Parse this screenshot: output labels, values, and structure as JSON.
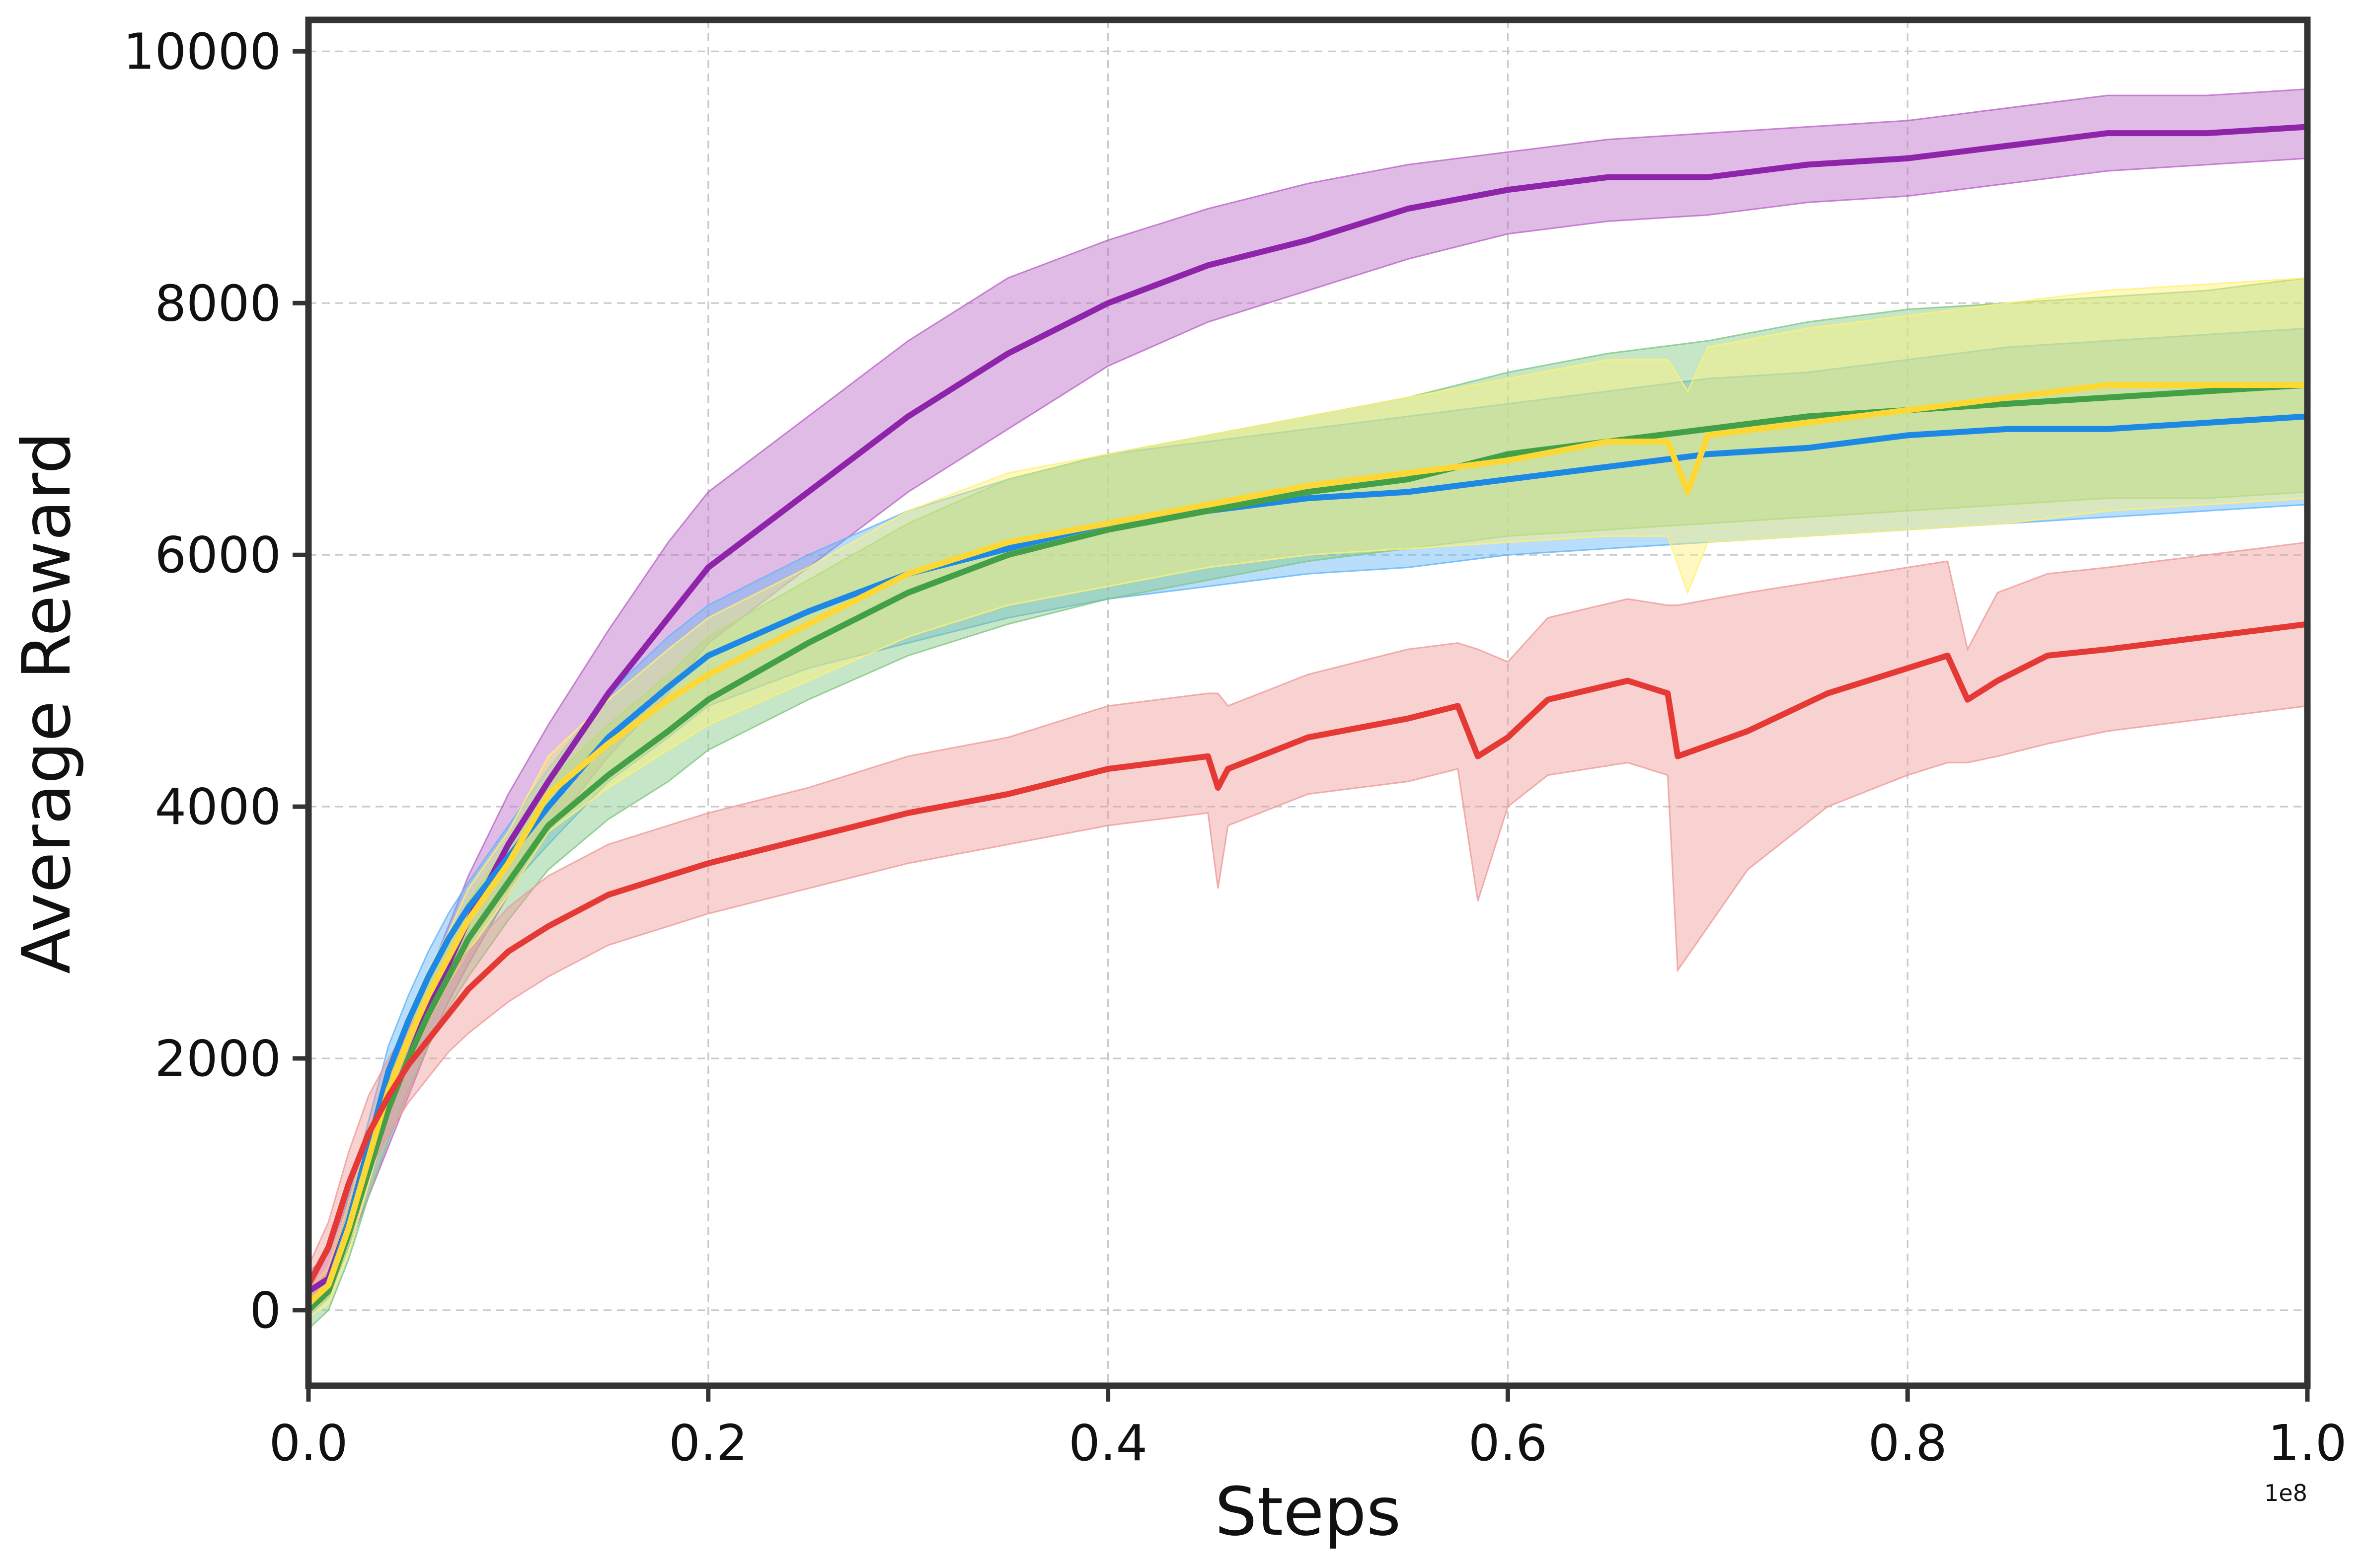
{
  "chart_data": {
    "type": "line",
    "title": "",
    "xlabel": "Steps",
    "ylabel": "Average Reward",
    "x_offset_label": "1e8",
    "xlim": [
      0.0,
      1.0
    ],
    "ylim": [
      -600,
      10250
    ],
    "x_ticks": [
      0.0,
      0.2,
      0.4,
      0.6,
      0.8,
      1.0
    ],
    "x_tick_labels": [
      "0.0",
      "0.2",
      "0.4",
      "0.6",
      "0.8",
      "1.0"
    ],
    "y_ticks": [
      0,
      2000,
      4000,
      6000,
      8000,
      10000
    ],
    "y_tick_labels": [
      "0",
      "2000",
      "4000",
      "6000",
      "8000",
      "10000"
    ],
    "grid": true,
    "legend": "none",
    "series": [
      {
        "name": "purple",
        "color": "#8E24AA",
        "band_color": "#BA68C8",
        "x": [
          0.0,
          0.01,
          0.02,
          0.03,
          0.04,
          0.05,
          0.06,
          0.07,
          0.08,
          0.1,
          0.12,
          0.15,
          0.18,
          0.2,
          0.25,
          0.3,
          0.35,
          0.4,
          0.45,
          0.5,
          0.55,
          0.6,
          0.65,
          0.7,
          0.75,
          0.8,
          0.85,
          0.9,
          0.95,
          1.0
        ],
        "values": [
          150,
          250,
          700,
          1100,
          1600,
          2000,
          2400,
          2750,
          3100,
          3700,
          4200,
          4900,
          5500,
          5900,
          6500,
          7100,
          7600,
          8000,
          8300,
          8500,
          8750,
          8900,
          9000,
          9000,
          9100,
          9150,
          9250,
          9350,
          9350,
          9400
        ],
        "lower": [
          0,
          100,
          500,
          900,
          1300,
          1700,
          2100,
          2450,
          2750,
          3300,
          3800,
          4400,
          4900,
          5300,
          5900,
          6500,
          7000,
          7500,
          7850,
          8100,
          8350,
          8550,
          8650,
          8700,
          8800,
          8850,
          8950,
          9050,
          9100,
          9150
        ],
        "upper": [
          300,
          450,
          900,
          1300,
          1800,
          2250,
          2650,
          3050,
          3450,
          4100,
          4650,
          5400,
          6100,
          6500,
          7100,
          7700,
          8200,
          8500,
          8750,
          8950,
          9100,
          9200,
          9300,
          9350,
          9400,
          9450,
          9550,
          9650,
          9650,
          9700
        ]
      },
      {
        "name": "blue",
        "color": "#1E88E5",
        "band_color": "#64B5F6",
        "x": [
          0.0,
          0.01,
          0.02,
          0.03,
          0.04,
          0.05,
          0.06,
          0.07,
          0.08,
          0.1,
          0.12,
          0.15,
          0.18,
          0.2,
          0.25,
          0.3,
          0.35,
          0.4,
          0.45,
          0.5,
          0.55,
          0.6,
          0.65,
          0.7,
          0.75,
          0.8,
          0.85,
          0.9,
          0.95,
          1.0
        ],
        "values": [
          50,
          200,
          700,
          1300,
          1900,
          2300,
          2650,
          2950,
          3200,
          3600,
          4000,
          4550,
          4950,
          5200,
          5550,
          5850,
          6050,
          6250,
          6350,
          6450,
          6500,
          6600,
          6700,
          6800,
          6850,
          6950,
          7000,
          7000,
          7050,
          7100
        ],
        "lower": [
          -50,
          100,
          500,
          1100,
          1700,
          2100,
          2450,
          2750,
          3000,
          3350,
          3700,
          4200,
          4550,
          4800,
          5100,
          5300,
          5500,
          5650,
          5750,
          5850,
          5900,
          6000,
          6050,
          6100,
          6150,
          6200,
          6250,
          6300,
          6350,
          6400
        ],
        "upper": [
          150,
          300,
          900,
          1500,
          2100,
          2500,
          2850,
          3150,
          3400,
          3850,
          4300,
          4900,
          5350,
          5600,
          6000,
          6350,
          6600,
          6800,
          6900,
          7000,
          7100,
          7200,
          7300,
          7400,
          7450,
          7550,
          7650,
          7700,
          7750,
          7800
        ]
      },
      {
        "name": "green",
        "color": "#43A047",
        "band_color": "#81C784",
        "x": [
          0.0,
          0.01,
          0.02,
          0.03,
          0.04,
          0.05,
          0.06,
          0.07,
          0.08,
          0.1,
          0.12,
          0.15,
          0.18,
          0.2,
          0.25,
          0.3,
          0.35,
          0.4,
          0.45,
          0.5,
          0.55,
          0.6,
          0.65,
          0.7,
          0.75,
          0.8,
          0.85,
          0.9,
          0.95,
          1.0
        ],
        "values": [
          0,
          150,
          600,
          1100,
          1600,
          2000,
          2350,
          2650,
          2950,
          3400,
          3850,
          4250,
          4600,
          4850,
          5300,
          5700,
          6000,
          6200,
          6350,
          6500,
          6600,
          6800,
          6900,
          7000,
          7100,
          7150,
          7200,
          7250,
          7300,
          7350
        ],
        "lower": [
          -150,
          0,
          400,
          900,
          1350,
          1750,
          2100,
          2400,
          2650,
          3100,
          3500,
          3900,
          4200,
          4450,
          4850,
          5200,
          5450,
          5650,
          5800,
          5950,
          6050,
          6150,
          6200,
          6250,
          6300,
          6350,
          6400,
          6450,
          6450,
          6500
        ],
        "upper": [
          150,
          300,
          800,
          1300,
          1850,
          2250,
          2600,
          2900,
          3250,
          3700,
          4200,
          4650,
          5050,
          5350,
          5800,
          6250,
          6600,
          6800,
          6950,
          7100,
          7250,
          7450,
          7600,
          7700,
          7850,
          7950,
          8000,
          8050,
          8100,
          8200
        ]
      },
      {
        "name": "yellow",
        "color": "#FDD835",
        "band_color": "#FFF176",
        "x": [
          0.0,
          0.01,
          0.02,
          0.03,
          0.04,
          0.05,
          0.06,
          0.07,
          0.08,
          0.1,
          0.12,
          0.15,
          0.18,
          0.2,
          0.25,
          0.3,
          0.35,
          0.4,
          0.45,
          0.5,
          0.55,
          0.6,
          0.65,
          0.68,
          0.69,
          0.7,
          0.75,
          0.8,
          0.85,
          0.9,
          0.95,
          1.0
        ],
        "values": [
          50,
          200,
          650,
          1200,
          1750,
          2150,
          2500,
          2800,
          3100,
          3550,
          4100,
          4500,
          4850,
          5050,
          5450,
          5850,
          6100,
          6250,
          6400,
          6550,
          6650,
          6750,
          6900,
          6900,
          6500,
          6950,
          7050,
          7150,
          7250,
          7350,
          7350,
          7350
        ],
        "lower": [
          -50,
          50,
          450,
          1000,
          1550,
          1950,
          2300,
          2600,
          2850,
          3300,
          3800,
          4150,
          4450,
          4650,
          5000,
          5350,
          5600,
          5750,
          5900,
          6000,
          6050,
          6100,
          6150,
          6150,
          5700,
          6100,
          6150,
          6200,
          6250,
          6350,
          6400,
          6450
        ],
        "upper": [
          150,
          350,
          850,
          1400,
          1950,
          2350,
          2700,
          3000,
          3350,
          3800,
          4400,
          4850,
          5250,
          5500,
          5900,
          6350,
          6650,
          6800,
          6950,
          7100,
          7250,
          7400,
          7550,
          7550,
          7300,
          7650,
          7800,
          7900,
          8000,
          8100,
          8150,
          8200
        ]
      },
      {
        "name": "red",
        "color": "#E53935",
        "band_color": "#EF9A9A",
        "x": [
          0.0,
          0.01,
          0.02,
          0.03,
          0.04,
          0.05,
          0.06,
          0.07,
          0.08,
          0.1,
          0.12,
          0.15,
          0.18,
          0.2,
          0.25,
          0.3,
          0.35,
          0.4,
          0.45,
          0.455,
          0.46,
          0.5,
          0.55,
          0.575,
          0.585,
          0.6,
          0.62,
          0.66,
          0.68,
          0.685,
          0.72,
          0.76,
          0.8,
          0.82,
          0.83,
          0.845,
          0.87,
          0.9,
          0.95,
          1.0
        ],
        "values": [
          200,
          500,
          1000,
          1400,
          1700,
          1950,
          2150,
          2350,
          2550,
          2850,
          3050,
          3300,
          3450,
          3550,
          3750,
          3950,
          4100,
          4300,
          4400,
          4150,
          4300,
          4550,
          4700,
          4800,
          4400,
          4550,
          4850,
          5000,
          4900,
          4400,
          4600,
          4900,
          5100,
          5200,
          4850,
          5000,
          5200,
          5250,
          5350,
          5450
        ],
        "lower": [
          50,
          300,
          750,
          1100,
          1400,
          1650,
          1850,
          2050,
          2200,
          2450,
          2650,
          2900,
          3050,
          3150,
          3350,
          3550,
          3700,
          3850,
          3950,
          3350,
          3850,
          4100,
          4200,
          4300,
          3250,
          4000,
          4250,
          4350,
          4250,
          2700,
          3500,
          4000,
          4250,
          4350,
          4350,
          4400,
          4500,
          4600,
          4700,
          4800
        ],
        "upper": [
          350,
          700,
          1250,
          1700,
          2000,
          2250,
          2450,
          2650,
          2850,
          3200,
          3450,
          3700,
          3850,
          3950,
          4150,
          4400,
          4550,
          4800,
          4900,
          4900,
          4800,
          5050,
          5250,
          5300,
          5250,
          5150,
          5500,
          5650,
          5600,
          5600,
          5700,
          5800,
          5900,
          5950,
          5250,
          5700,
          5850,
          5900,
          6000,
          6100
        ]
      }
    ]
  }
}
